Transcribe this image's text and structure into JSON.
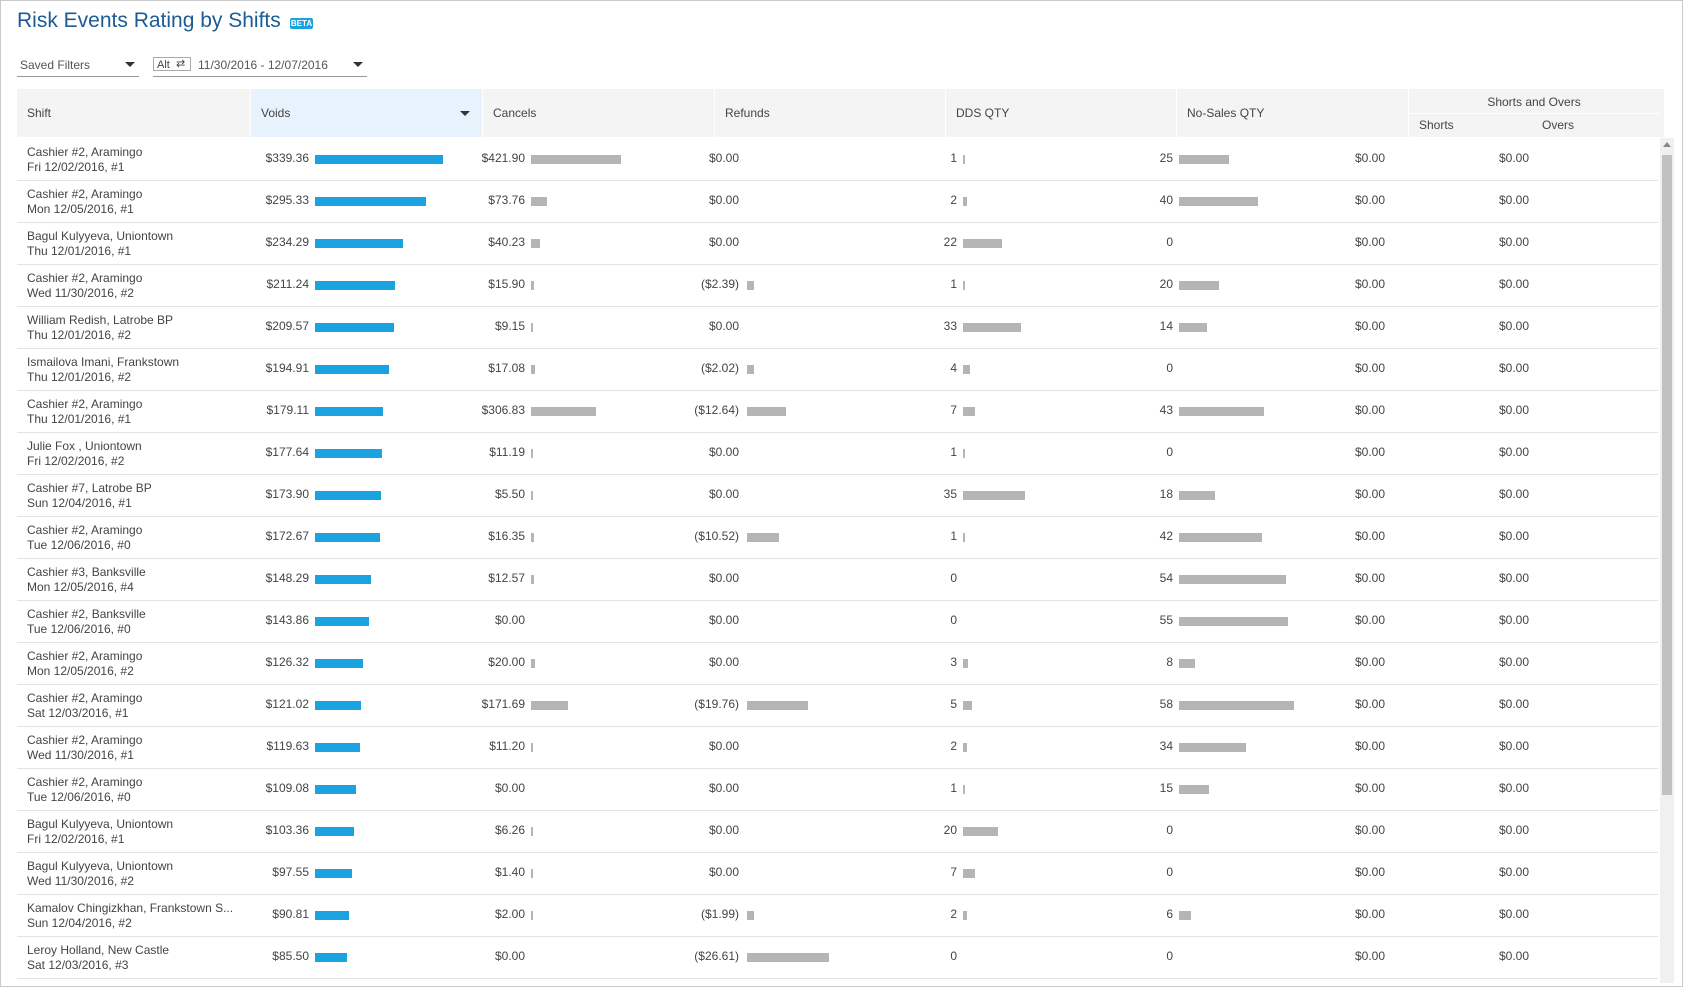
{
  "page": {
    "title": "Risk Events Rating by Shifts",
    "badge": "BETA"
  },
  "filters": {
    "saved_filters_label": "Saved Filters",
    "alt_label": "Alt",
    "swap_glyph": "⇄",
    "date_range": "11/30/2016 - 12/07/2016"
  },
  "columns": {
    "shift": "Shift",
    "voids": "Voids",
    "cancels": "Cancels",
    "refunds": "Refunds",
    "dds_qty": "DDS QTY",
    "no_sales_qty": "No-Sales QTY",
    "shorts_and_overs": "Shorts and Overs",
    "shorts": "Shorts",
    "overs": "Overs"
  },
  "sort": {
    "column": "voids",
    "direction": "desc"
  },
  "colors": {
    "title": "#1d5b95",
    "void_bar": "#1aa3e0",
    "other_bar": "#b5b5b5",
    "active_header": "#e8f2fd"
  },
  "bar_scale": {
    "voids_max": 339.36,
    "cancels_max": 421.9,
    "refunds_max": 26.61,
    "dds_max": 35,
    "nosales_max": 58
  },
  "rows": [
    {
      "line1": "Cashier #2, Aramingo",
      "line2": "Fri 12/02/2016, #1",
      "voids": "$339.36",
      "voids_v": 339.36,
      "cancels": "$421.90",
      "cancels_v": 421.9,
      "refunds": "$0.00",
      "refunds_v": 0,
      "dds": "1",
      "dds_v": 1,
      "nosales": "25",
      "nosales_v": 25,
      "shorts": "$0.00",
      "overs": "$0.00"
    },
    {
      "line1": "Cashier #2, Aramingo",
      "line2": "Mon 12/05/2016, #1",
      "voids": "$295.33",
      "voids_v": 295.33,
      "cancels": "$73.76",
      "cancels_v": 73.76,
      "refunds": "$0.00",
      "refunds_v": 0,
      "dds": "2",
      "dds_v": 2,
      "nosales": "40",
      "nosales_v": 40,
      "shorts": "$0.00",
      "overs": "$0.00"
    },
    {
      "line1": "Bagul Kulyyeva, Uniontown",
      "line2": "Thu 12/01/2016, #1",
      "voids": "$234.29",
      "voids_v": 234.29,
      "cancels": "$40.23",
      "cancels_v": 40.23,
      "refunds": "$0.00",
      "refunds_v": 0,
      "dds": "22",
      "dds_v": 22,
      "nosales": "0",
      "nosales_v": 0,
      "shorts": "$0.00",
      "overs": "$0.00"
    },
    {
      "line1": "Cashier #2, Aramingo",
      "line2": "Wed 11/30/2016, #2",
      "voids": "$211.24",
      "voids_v": 211.24,
      "cancels": "$15.90",
      "cancels_v": 15.9,
      "refunds": "($2.39)",
      "refunds_v": 2.39,
      "dds": "1",
      "dds_v": 1,
      "nosales": "20",
      "nosales_v": 20,
      "shorts": "$0.00",
      "overs": "$0.00"
    },
    {
      "line1": "William Redish, Latrobe BP",
      "line2": "Thu 12/01/2016, #2",
      "voids": "$209.57",
      "voids_v": 209.57,
      "cancels": "$9.15",
      "cancels_v": 9.15,
      "refunds": "$0.00",
      "refunds_v": 0,
      "dds": "33",
      "dds_v": 33,
      "nosales": "14",
      "nosales_v": 14,
      "shorts": "$0.00",
      "overs": "$0.00"
    },
    {
      "line1": "Ismailova Imani, Frankstown",
      "line2": "Thu 12/01/2016, #2",
      "voids": "$194.91",
      "voids_v": 194.91,
      "cancels": "$17.08",
      "cancels_v": 17.08,
      "refunds": "($2.02)",
      "refunds_v": 2.02,
      "dds": "4",
      "dds_v": 4,
      "nosales": "0",
      "nosales_v": 0,
      "shorts": "$0.00",
      "overs": "$0.00"
    },
    {
      "line1": "Cashier #2, Aramingo",
      "line2": "Thu 12/01/2016, #1",
      "voids": "$179.11",
      "voids_v": 179.11,
      "cancels": "$306.83",
      "cancels_v": 306.83,
      "refunds": "($12.64)",
      "refunds_v": 12.64,
      "dds": "7",
      "dds_v": 7,
      "nosales": "43",
      "nosales_v": 43,
      "shorts": "$0.00",
      "overs": "$0.00"
    },
    {
      "line1": "Julie Fox , Uniontown",
      "line2": "Fri 12/02/2016, #2",
      "voids": "$177.64",
      "voids_v": 177.64,
      "cancels": "$11.19",
      "cancels_v": 11.19,
      "refunds": "$0.00",
      "refunds_v": 0,
      "dds": "1",
      "dds_v": 1,
      "nosales": "0",
      "nosales_v": 0,
      "shorts": "$0.00",
      "overs": "$0.00"
    },
    {
      "line1": "Cashier #7, Latrobe BP",
      "line2": "Sun 12/04/2016, #1",
      "voids": "$173.90",
      "voids_v": 173.9,
      "cancels": "$5.50",
      "cancels_v": 5.5,
      "refunds": "$0.00",
      "refunds_v": 0,
      "dds": "35",
      "dds_v": 35,
      "nosales": "18",
      "nosales_v": 18,
      "shorts": "$0.00",
      "overs": "$0.00"
    },
    {
      "line1": "Cashier #2, Aramingo",
      "line2": "Tue 12/06/2016, #0",
      "voids": "$172.67",
      "voids_v": 172.67,
      "cancels": "$16.35",
      "cancels_v": 16.35,
      "refunds": "($10.52)",
      "refunds_v": 10.52,
      "dds": "1",
      "dds_v": 1,
      "nosales": "42",
      "nosales_v": 42,
      "shorts": "$0.00",
      "overs": "$0.00"
    },
    {
      "line1": "Cashier #3, Banksville",
      "line2": "Mon 12/05/2016, #4",
      "voids": "$148.29",
      "voids_v": 148.29,
      "cancels": "$12.57",
      "cancels_v": 12.57,
      "refunds": "$0.00",
      "refunds_v": 0,
      "dds": "0",
      "dds_v": 0,
      "nosales": "54",
      "nosales_v": 54,
      "shorts": "$0.00",
      "overs": "$0.00"
    },
    {
      "line1": "Cashier #2, Banksville",
      "line2": "Tue 12/06/2016, #0",
      "voids": "$143.86",
      "voids_v": 143.86,
      "cancels": "$0.00",
      "cancels_v": 0,
      "refunds": "$0.00",
      "refunds_v": 0,
      "dds": "0",
      "dds_v": 0,
      "nosales": "55",
      "nosales_v": 55,
      "shorts": "$0.00",
      "overs": "$0.00"
    },
    {
      "line1": "Cashier #2, Aramingo",
      "line2": "Mon 12/05/2016, #2",
      "voids": "$126.32",
      "voids_v": 126.32,
      "cancels": "$20.00",
      "cancels_v": 20.0,
      "refunds": "$0.00",
      "refunds_v": 0,
      "dds": "3",
      "dds_v": 3,
      "nosales": "8",
      "nosales_v": 8,
      "shorts": "$0.00",
      "overs": "$0.00"
    },
    {
      "line1": "Cashier #2, Aramingo",
      "line2": "Sat 12/03/2016, #1",
      "voids": "$121.02",
      "voids_v": 121.02,
      "cancels": "$171.69",
      "cancels_v": 171.69,
      "refunds": "($19.76)",
      "refunds_v": 19.76,
      "dds": "5",
      "dds_v": 5,
      "nosales": "58",
      "nosales_v": 58,
      "shorts": "$0.00",
      "overs": "$0.00"
    },
    {
      "line1": "Cashier #2, Aramingo",
      "line2": "Wed 11/30/2016, #1",
      "voids": "$119.63",
      "voids_v": 119.63,
      "cancels": "$11.20",
      "cancels_v": 11.2,
      "refunds": "$0.00",
      "refunds_v": 0,
      "dds": "2",
      "dds_v": 2,
      "nosales": "34",
      "nosales_v": 34,
      "shorts": "$0.00",
      "overs": "$0.00"
    },
    {
      "line1": "Cashier #2, Aramingo",
      "line2": "Tue 12/06/2016, #0",
      "voids": "$109.08",
      "voids_v": 109.08,
      "cancels": "$0.00",
      "cancels_v": 0,
      "refunds": "$0.00",
      "refunds_v": 0,
      "dds": "1",
      "dds_v": 1,
      "nosales": "15",
      "nosales_v": 15,
      "shorts": "$0.00",
      "overs": "$0.00"
    },
    {
      "line1": "Bagul Kulyyeva, Uniontown",
      "line2": "Fri 12/02/2016, #1",
      "voids": "$103.36",
      "voids_v": 103.36,
      "cancels": "$6.26",
      "cancels_v": 6.26,
      "refunds": "$0.00",
      "refunds_v": 0,
      "dds": "20",
      "dds_v": 20,
      "nosales": "0",
      "nosales_v": 0,
      "shorts": "$0.00",
      "overs": "$0.00"
    },
    {
      "line1": "Bagul Kulyyeva, Uniontown",
      "line2": "Wed 11/30/2016, #2",
      "voids": "$97.55",
      "voids_v": 97.55,
      "cancels": "$1.40",
      "cancels_v": 1.4,
      "refunds": "$0.00",
      "refunds_v": 0,
      "dds": "7",
      "dds_v": 7,
      "nosales": "0",
      "nosales_v": 0,
      "shorts": "$0.00",
      "overs": "$0.00"
    },
    {
      "line1": "Kamalov Chingizkhan, Frankstown S...",
      "line2": "Sun 12/04/2016, #2",
      "voids": "$90.81",
      "voids_v": 90.81,
      "cancels": "$2.00",
      "cancels_v": 2.0,
      "refunds": "($1.99)",
      "refunds_v": 1.99,
      "dds": "2",
      "dds_v": 2,
      "nosales": "6",
      "nosales_v": 6,
      "shorts": "$0.00",
      "overs": "$0.00"
    },
    {
      "line1": "Leroy Holland, New Castle",
      "line2": "Sat 12/03/2016, #3",
      "voids": "$85.50",
      "voids_v": 85.5,
      "cancels": "$0.00",
      "cancels_v": 0,
      "refunds": "($26.61)",
      "refunds_v": 26.61,
      "dds": "0",
      "dds_v": 0,
      "nosales": "0",
      "nosales_v": 0,
      "shorts": "$0.00",
      "overs": "$0.00"
    }
  ]
}
